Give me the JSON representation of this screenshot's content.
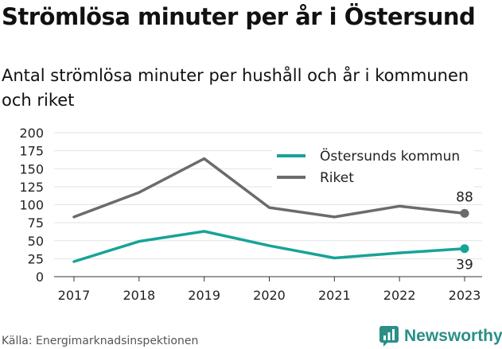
{
  "title": "Strömlösa minuter per år i Östersund",
  "subtitle": "Antal strömlösa minuter per hushåll och år i kommunen och riket",
  "source": "Källa: Energimarknadsinspektionen",
  "brand": "Newsworthy",
  "chart_data": {
    "type": "line",
    "x": [
      "2017",
      "2018",
      "2019",
      "2020",
      "2021",
      "2022",
      "2023"
    ],
    "yticks": [
      "0",
      "25",
      "50",
      "75",
      "100",
      "125",
      "150",
      "175",
      "200"
    ],
    "ylim": [
      0,
      200
    ],
    "grid": true,
    "legend_position": "top-right",
    "series": [
      {
        "name": "Östersunds kommun",
        "color": "#17a398",
        "values": [
          21,
          49,
          63,
          43,
          26,
          33,
          39
        ],
        "end_label": "39"
      },
      {
        "name": "Riket",
        "color": "#6b6b6f",
        "values": [
          83,
          117,
          164,
          96,
          83,
          98,
          88
        ],
        "end_label": "88"
      }
    ]
  }
}
